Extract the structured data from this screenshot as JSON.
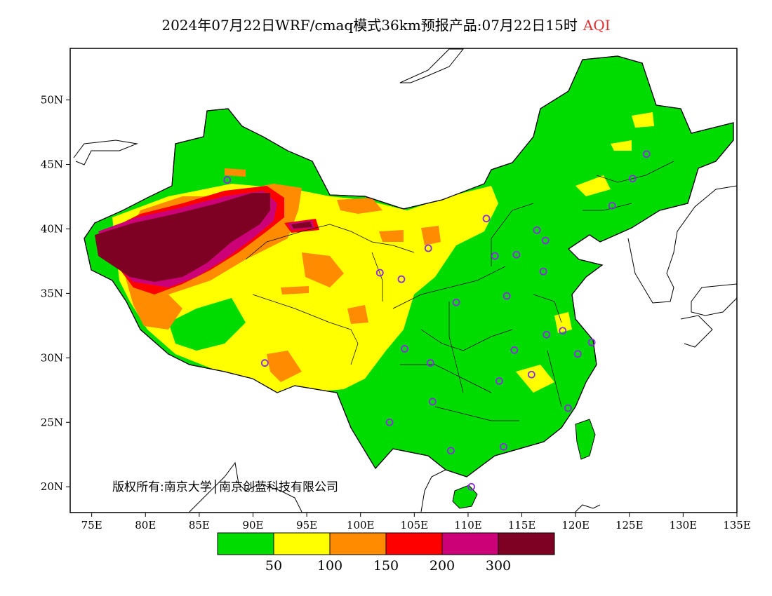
{
  "title": {
    "main": "2024年07月22日WRF/cmaq模式36km预报产品:07月22日15时",
    "variable": "AQI"
  },
  "copyright": "版权所有:南京大学│南京创蓝科技有限公司",
  "axes": {
    "x_ticks": [
      "75E",
      "80E",
      "85E",
      "90E",
      "95E",
      "100E",
      "105E",
      "110E",
      "115E",
      "120E",
      "125E",
      "130E",
      "135E"
    ],
    "x_values": [
      75,
      80,
      85,
      90,
      95,
      100,
      105,
      110,
      115,
      120,
      125,
      130,
      135
    ],
    "y_ticks": [
      "20N",
      "25N",
      "30N",
      "35N",
      "40N",
      "45N",
      "50N"
    ],
    "y_values": [
      20,
      25,
      30,
      35,
      40,
      45,
      50
    ],
    "lon_range": [
      73,
      135
    ],
    "lat_range": [
      18,
      54
    ]
  },
  "colorbar": {
    "colors": [
      "#00dc00",
      "#ffff00",
      "#ff8c00",
      "#ff0000",
      "#cc0077",
      "#7e0023"
    ],
    "labels": [
      "50",
      "100",
      "150",
      "200",
      "300"
    ]
  },
  "map": {
    "land_color": "#00dc00",
    "boundary_color": "#000000",
    "station_color": "#8a2be2",
    "stations": [
      [
        87.6,
        43.8
      ],
      [
        91.1,
        29.6
      ],
      [
        101.8,
        36.6
      ],
      [
        103.8,
        36.1
      ],
      [
        106.3,
        38.5
      ],
      [
        111.7,
        40.8
      ],
      [
        112.5,
        37.9
      ],
      [
        114.5,
        38.0
      ],
      [
        116.4,
        39.9
      ],
      [
        117.2,
        39.1
      ],
      [
        117.0,
        36.7
      ],
      [
        113.6,
        34.8
      ],
      [
        108.9,
        34.3
      ],
      [
        104.1,
        30.7
      ],
      [
        106.5,
        29.6
      ],
      [
        106.7,
        26.6
      ],
      [
        102.7,
        25.0
      ],
      [
        108.4,
        22.8
      ],
      [
        110.3,
        20.0
      ],
      [
        113.3,
        23.1
      ],
      [
        114.3,
        30.6
      ],
      [
        112.9,
        28.2
      ],
      [
        115.9,
        28.7
      ],
      [
        117.3,
        31.8
      ],
      [
        118.8,
        32.1
      ],
      [
        120.2,
        30.3
      ],
      [
        121.5,
        31.2
      ],
      [
        119.3,
        26.1
      ],
      [
        123.4,
        41.8
      ],
      [
        125.3,
        43.9
      ],
      [
        126.6,
        45.8
      ]
    ]
  }
}
